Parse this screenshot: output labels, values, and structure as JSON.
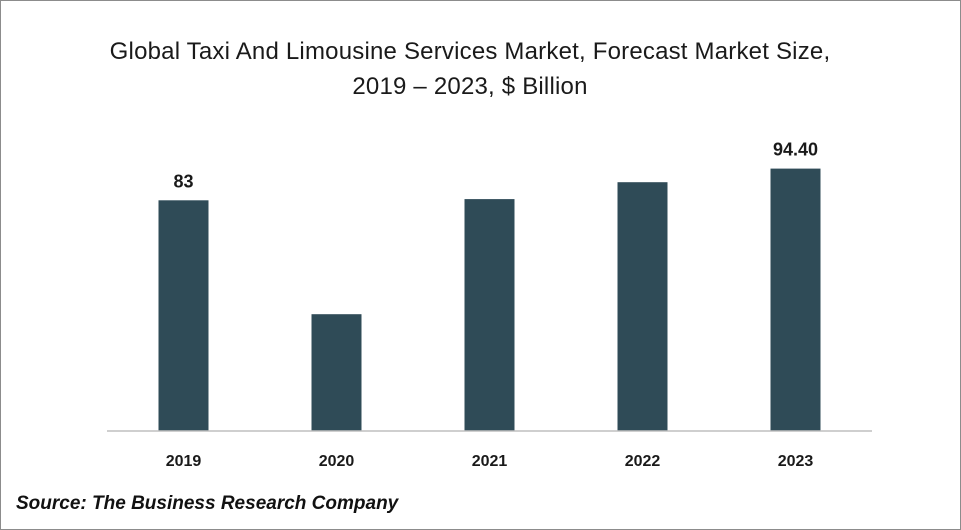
{
  "chart_data": {
    "type": "bar",
    "title": "Global Taxi And Limousine Services Market, Forecast Market Size, 2019 – 2023, $ Billion",
    "categories": [
      "2019",
      "2020",
      "2021",
      "2022",
      "2023"
    ],
    "values": [
      83,
      42,
      83.4,
      89.5,
      94.4
    ],
    "data_labels": [
      "83",
      "",
      "",
      "",
      "94.40"
    ],
    "xlabel": "",
    "ylabel": "",
    "ylim": [
      0,
      100
    ],
    "grid": false,
    "bar_color": "#2f4b57"
  },
  "source": "Source: The Business Research Company"
}
